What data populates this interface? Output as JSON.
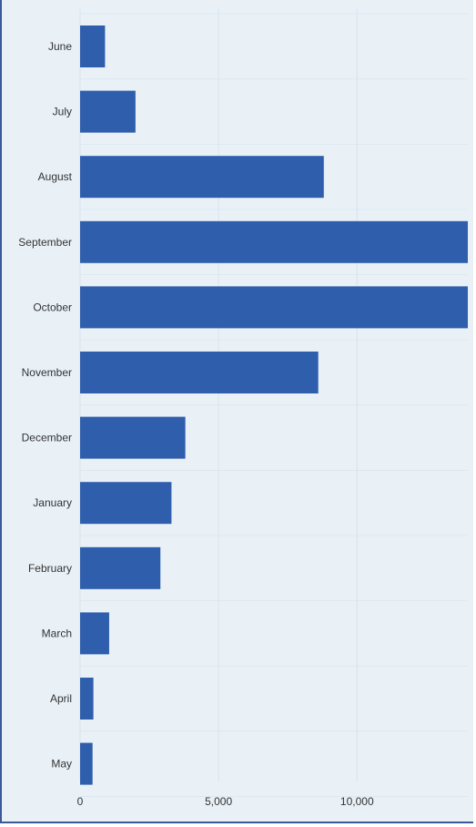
{
  "chart_data": {
    "type": "bar",
    "orientation": "horizontal",
    "categories": [
      "June",
      "July",
      "August",
      "September",
      "October",
      "November",
      "December",
      "January",
      "February",
      "March",
      "April",
      "May"
    ],
    "values": [
      900,
      2000,
      8800,
      14000,
      14000,
      8600,
      3800,
      3300,
      2900,
      1050,
      480,
      450
    ],
    "xlim": [
      0,
      14000
    ],
    "xticks": [
      0,
      5000,
      10000
    ],
    "xtick_labels": [
      "0",
      "5,000",
      "10,000"
    ],
    "title": "",
    "xlabel": "",
    "ylabel": "",
    "grid": true,
    "colors": {
      "bar": "#2f5eac",
      "background": "#e9f1f7",
      "grid": "#d6e2ec",
      "frame": "#3b5998"
    }
  }
}
